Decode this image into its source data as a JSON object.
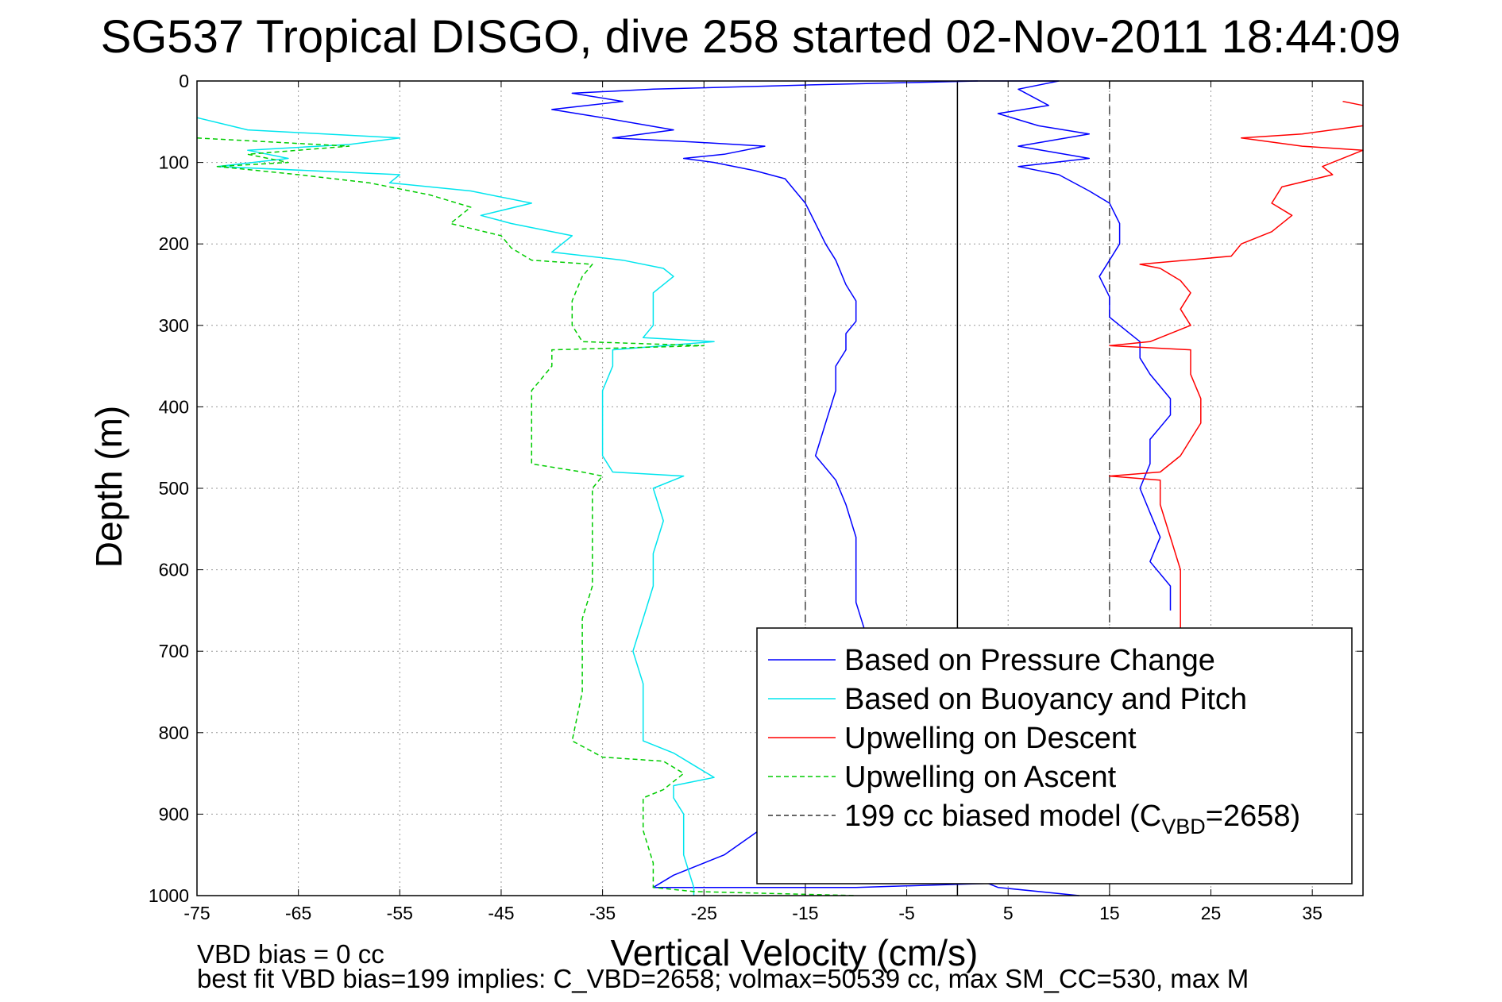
{
  "chart_data": {
    "type": "line",
    "title": "SG537 Tropical DISGO, dive 258 started 02-Nov-2011 18:44:09",
    "xlabel": "Vertical Velocity (cm/s)",
    "ylabel": "Depth (m)",
    "xlim": [
      -75,
      40
    ],
    "ylim": [
      0,
      1000
    ],
    "y_reversed": true,
    "grid": true,
    "xticks": [
      -75,
      -65,
      -55,
      -45,
      -35,
      -25,
      -15,
      -5,
      5,
      15,
      25,
      35
    ],
    "yticks": [
      0,
      100,
      200,
      300,
      400,
      500,
      600,
      700,
      800,
      900,
      1000
    ],
    "legend_position": "bottom-right",
    "reference_lines": [
      {
        "x": -15,
        "style": "dashed",
        "color": "#444444"
      },
      {
        "x": 0,
        "style": "solid",
        "color": "#000000"
      },
      {
        "x": 15,
        "style": "dashed",
        "color": "#444444"
      }
    ],
    "series": [
      {
        "name": "Based on Pressure Change",
        "color": "#0000ff",
        "style": "solid",
        "points": [
          [
            2,
            0
          ],
          [
            -15,
            5
          ],
          [
            -30,
            10
          ],
          [
            -38,
            15
          ],
          [
            -33,
            25
          ],
          [
            -40,
            35
          ],
          [
            -35,
            45
          ],
          [
            -28,
            60
          ],
          [
            -34,
            70
          ],
          [
            -26,
            75
          ],
          [
            -19,
            80
          ],
          [
            -23,
            90
          ],
          [
            -27,
            95
          ],
          [
            -24,
            100
          ],
          [
            -20,
            110
          ],
          [
            -17,
            120
          ],
          [
            -16,
            135
          ],
          [
            -15,
            150
          ],
          [
            -14,
            175
          ],
          [
            -13,
            200
          ],
          [
            -12,
            220
          ],
          [
            -11,
            250
          ],
          [
            -10,
            270
          ],
          [
            -10,
            295
          ],
          [
            -11,
            310
          ],
          [
            -11,
            330
          ],
          [
            -12,
            350
          ],
          [
            -12,
            380
          ],
          [
            -13,
            420
          ],
          [
            -14,
            460
          ],
          [
            -12,
            490
          ],
          [
            -11,
            520
          ],
          [
            -10,
            560
          ],
          [
            -10,
            600
          ],
          [
            -10,
            640
          ],
          [
            -9,
            680
          ],
          [
            -9,
            700
          ],
          [
            -15,
            880
          ],
          [
            -23,
            950
          ],
          [
            -28,
            975
          ],
          [
            -30,
            990
          ],
          [
            -10,
            990
          ],
          [
            3,
            985
          ],
          [
            4,
            990
          ],
          [
            12,
            1000
          ]
        ]
      },
      {
        "name": "Based on Pressure Change",
        "color": "#0000ff",
        "style": "solid",
        "points": [
          [
            0,
            0
          ],
          [
            10,
            0
          ],
          [
            6,
            10
          ],
          [
            9,
            30
          ],
          [
            4,
            40
          ],
          [
            8,
            55
          ],
          [
            13,
            65
          ],
          [
            6,
            80
          ],
          [
            13,
            95
          ],
          [
            6,
            105
          ],
          [
            10,
            115
          ],
          [
            13,
            135
          ],
          [
            15,
            150
          ],
          [
            16,
            175
          ],
          [
            16,
            200
          ],
          [
            15,
            220
          ],
          [
            14,
            240
          ],
          [
            15,
            265
          ],
          [
            15,
            290
          ],
          [
            17,
            310
          ],
          [
            18,
            320
          ],
          [
            18,
            340
          ],
          [
            19,
            360
          ],
          [
            21,
            390
          ],
          [
            21,
            410
          ],
          [
            19,
            440
          ],
          [
            19,
            470
          ],
          [
            18,
            500
          ],
          [
            19,
            530
          ],
          [
            20,
            560
          ],
          [
            19,
            590
          ],
          [
            21,
            620
          ],
          [
            21,
            650
          ]
        ]
      },
      {
        "name": "Based on Buoyancy and Pitch",
        "color": "#00e5ee",
        "style": "solid",
        "points": [
          [
            -75,
            45
          ],
          [
            -70,
            60
          ],
          [
            -55,
            70
          ],
          [
            -60,
            78
          ],
          [
            -70,
            85
          ],
          [
            -66,
            95
          ],
          [
            -73,
            105
          ],
          [
            -55,
            115
          ],
          [
            -56,
            125
          ],
          [
            -48,
            135
          ],
          [
            -42,
            150
          ],
          [
            -47,
            165
          ],
          [
            -44,
            175
          ],
          [
            -38,
            190
          ],
          [
            -39,
            200
          ],
          [
            -40,
            210
          ],
          [
            -33,
            220
          ],
          [
            -29,
            230
          ],
          [
            -28,
            240
          ],
          [
            -30,
            260
          ],
          [
            -30,
            280
          ],
          [
            -30,
            300
          ],
          [
            -31,
            315
          ],
          [
            -24,
            320
          ],
          [
            -34,
            330
          ],
          [
            -34,
            350
          ],
          [
            -35,
            380
          ],
          [
            -35,
            420
          ],
          [
            -35,
            460
          ],
          [
            -34,
            480
          ],
          [
            -27,
            485
          ],
          [
            -30,
            500
          ],
          [
            -29,
            540
          ],
          [
            -30,
            580
          ],
          [
            -30,
            620
          ],
          [
            -31,
            660
          ],
          [
            -32,
            700
          ],
          [
            -31,
            740
          ],
          [
            -31,
            780
          ],
          [
            -31,
            810
          ],
          [
            -28,
            825
          ],
          [
            -26,
            840
          ],
          [
            -24,
            855
          ],
          [
            -28,
            865
          ],
          [
            -28,
            880
          ],
          [
            -27,
            900
          ],
          [
            -27,
            950
          ],
          [
            -26,
            990
          ],
          [
            -26,
            1000
          ]
        ]
      },
      {
        "name": "Upwelling on Descent",
        "color": "#ff0000",
        "style": "solid",
        "points": [
          [
            38,
            25
          ],
          [
            40,
            30
          ]
        ]
      },
      {
        "name": "Upwelling on Descent",
        "color": "#ff0000",
        "style": "solid",
        "points": [
          [
            40,
            55
          ],
          [
            34,
            65
          ],
          [
            28,
            70
          ],
          [
            34,
            80
          ],
          [
            40,
            85
          ],
          [
            36,
            105
          ],
          [
            37,
            115
          ],
          [
            32,
            130
          ],
          [
            31,
            150
          ],
          [
            33,
            165
          ],
          [
            31,
            185
          ],
          [
            28,
            200
          ],
          [
            27,
            215
          ],
          [
            18,
            225
          ],
          [
            20,
            230
          ],
          [
            22,
            245
          ],
          [
            23,
            260
          ],
          [
            22,
            280
          ],
          [
            23,
            300
          ],
          [
            19,
            320
          ],
          [
            15,
            325
          ],
          [
            23,
            330
          ],
          [
            23,
            360
          ],
          [
            24,
            390
          ],
          [
            24,
            420
          ],
          [
            23,
            440
          ],
          [
            22,
            460
          ],
          [
            20,
            480
          ],
          [
            15,
            485
          ],
          [
            20,
            490
          ],
          [
            20,
            520
          ],
          [
            21,
            560
          ],
          [
            22,
            600
          ],
          [
            22,
            630
          ],
          [
            22,
            660
          ],
          [
            22,
            700
          ]
        ]
      },
      {
        "name": "Upwelling on Ascent",
        "color": "#00cc00",
        "style": "dashed",
        "points": [
          [
            -75,
            70
          ],
          [
            -60,
            80
          ],
          [
            -70,
            90
          ],
          [
            -66,
            100
          ],
          [
            -73,
            105
          ],
          [
            -65,
            115
          ],
          [
            -58,
            125
          ],
          [
            -52,
            140
          ],
          [
            -48,
            155
          ],
          [
            -50,
            175
          ],
          [
            -45,
            190
          ],
          [
            -44,
            205
          ],
          [
            -42,
            220
          ],
          [
            -36,
            225
          ],
          [
            -37,
            240
          ],
          [
            -38,
            270
          ],
          [
            -38,
            300
          ],
          [
            -37,
            320
          ],
          [
            -25,
            325
          ],
          [
            -40,
            330
          ],
          [
            -40,
            350
          ],
          [
            -42,
            380
          ],
          [
            -42,
            420
          ],
          [
            -42,
            470
          ],
          [
            -37,
            480
          ],
          [
            -35,
            485
          ],
          [
            -36,
            500
          ],
          [
            -36,
            540
          ],
          [
            -36,
            580
          ],
          [
            -36,
            620
          ],
          [
            -37,
            660
          ],
          [
            -37,
            700
          ],
          [
            -37,
            750
          ],
          [
            -38,
            810
          ],
          [
            -35,
            830
          ],
          [
            -29,
            835
          ],
          [
            -27,
            850
          ],
          [
            -29,
            870
          ],
          [
            -31,
            880
          ],
          [
            -31,
            920
          ],
          [
            -30,
            960
          ],
          [
            -30,
            990
          ],
          [
            -26,
            995
          ],
          [
            -10,
            1000
          ]
        ]
      }
    ],
    "legend": [
      {
        "label": "Based on Pressure Change",
        "color": "#0000ff",
        "style": "solid"
      },
      {
        "label": "Based on Buoyancy and Pitch",
        "color": "#00e5ee",
        "style": "solid"
      },
      {
        "label": "Upwelling on Descent",
        "color": "#ff0000",
        "style": "solid"
      },
      {
        "label": "Upwelling on Ascent",
        "color": "#00cc00",
        "style": "dashed"
      },
      {
        "label": "199 cc biased model (C",
        "sub": "VBD",
        "suffix": "=2658)",
        "color": "#333333",
        "style": "dashed"
      }
    ],
    "annotations": [
      "VBD bias = 0 cc",
      "best fit VBD bias=199 implies: C_VBD=2658; volmax=50539 cc, max SM_CC=530, max M"
    ]
  }
}
